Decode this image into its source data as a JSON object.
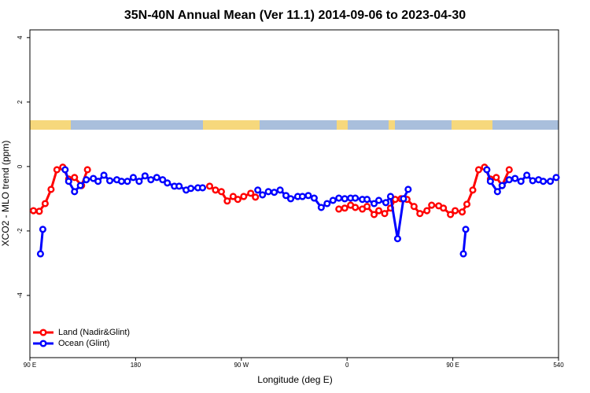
{
  "chart_data": {
    "type": "line",
    "title": "35N-40N Annual Mean (Ver 11.1)   2014-09-06 to 2023-04-30",
    "x_label": "Longitude (deg E)",
    "y_label": "XCO2 - MLO trend (ppm)",
    "xlim": [
      90,
      540
    ],
    "ylim": [
      -5.93,
      4.24
    ],
    "xticks": [
      {
        "value": 90,
        "label": "90 E"
      },
      180,
      {
        "value": 270,
        "label": "90 W"
      },
      {
        "value": 360,
        "label": "0"
      },
      {
        "value": 450,
        "label": "90 E"
      },
      540
    ],
    "yticks": [
      4,
      2,
      0,
      -2,
      -4
    ],
    "legend": "bottom-left",
    "series": [
      {
        "name": "Land (Nadir&Glint)",
        "color": "#ff0000",
        "x": [
          93,
          98,
          103,
          108,
          113,
          118,
          123,
          128,
          134,
          139,
          null,
          243,
          248,
          253,
          258,
          263,
          267,
          272,
          278,
          282,
          null,
          353,
          358,
          363,
          367,
          373,
          377,
          383,
          387,
          392,
          397,
          401,
          406,
          411,
          417,
          422,
          428,
          432,
          438,
          442,
          448,
          452,
          458,
          462,
          467,
          472,
          477,
          482,
          487,
          492,
          498
        ],
        "values": [
          -1.37,
          -1.39,
          -1.15,
          -0.71,
          -0.1,
          -0.02,
          -0.39,
          -0.34,
          -0.59,
          -0.1,
          null,
          -0.61,
          -0.73,
          -0.78,
          -1.07,
          -0.93,
          -1.02,
          -0.93,
          -0.83,
          -0.95,
          null,
          -1.32,
          -1.29,
          -1.2,
          -1.27,
          -1.32,
          -1.24,
          -1.49,
          -1.37,
          -1.46,
          -1.29,
          -1.02,
          -1.0,
          -1.02,
          -1.24,
          -1.46,
          -1.37,
          -1.2,
          -1.22,
          -1.29,
          -1.49,
          -1.37,
          -1.41,
          -1.17,
          -0.73,
          -0.1,
          -0.02,
          -0.39,
          -0.34,
          -0.59,
          -0.1
        ]
      },
      {
        "name": "Ocean (Glint)",
        "color": "#0000ff",
        "x": [
          99,
          101,
          null,
          120,
          123,
          128,
          133,
          138,
          144,
          148,
          153,
          158,
          164,
          168,
          173,
          178,
          183,
          188,
          193,
          198,
          203,
          207,
          213,
          217,
          223,
          227,
          233,
          237,
          null,
          284,
          288,
          293,
          298,
          303,
          308,
          312,
          318,
          322,
          327,
          332,
          338,
          343,
          348,
          353,
          358,
          363,
          367,
          373,
          377,
          383,
          387,
          393,
          397,
          403,
          408,
          412,
          null,
          459,
          461,
          null,
          479,
          482,
          488,
          492,
          498,
          503,
          508,
          513,
          518,
          523,
          527,
          533,
          538
        ],
        "values": [
          -2.71,
          -1.95,
          null,
          -0.1,
          -0.46,
          -0.78,
          -0.59,
          -0.41,
          -0.37,
          -0.46,
          -0.27,
          -0.44,
          -0.41,
          -0.46,
          -0.46,
          -0.34,
          -0.46,
          -0.29,
          -0.41,
          -0.34,
          -0.41,
          -0.51,
          -0.61,
          -0.61,
          -0.73,
          -0.68,
          -0.66,
          -0.66,
          null,
          -0.73,
          -0.88,
          -0.78,
          -0.8,
          -0.73,
          -0.9,
          -1.0,
          -0.93,
          -0.93,
          -0.9,
          -0.98,
          -1.27,
          -1.15,
          -1.05,
          -0.98,
          -1.0,
          -0.98,
          -0.98,
          -1.02,
          -1.02,
          -1.15,
          -1.05,
          -1.12,
          -0.93,
          -2.24,
          -1.0,
          -0.71,
          null,
          -2.71,
          -1.95,
          null,
          -0.1,
          -0.46,
          -0.78,
          -0.59,
          -0.41,
          -0.37,
          -0.46,
          -0.27,
          -0.44,
          -0.41,
          -0.46,
          -0.46,
          -0.34
        ]
      }
    ]
  }
}
